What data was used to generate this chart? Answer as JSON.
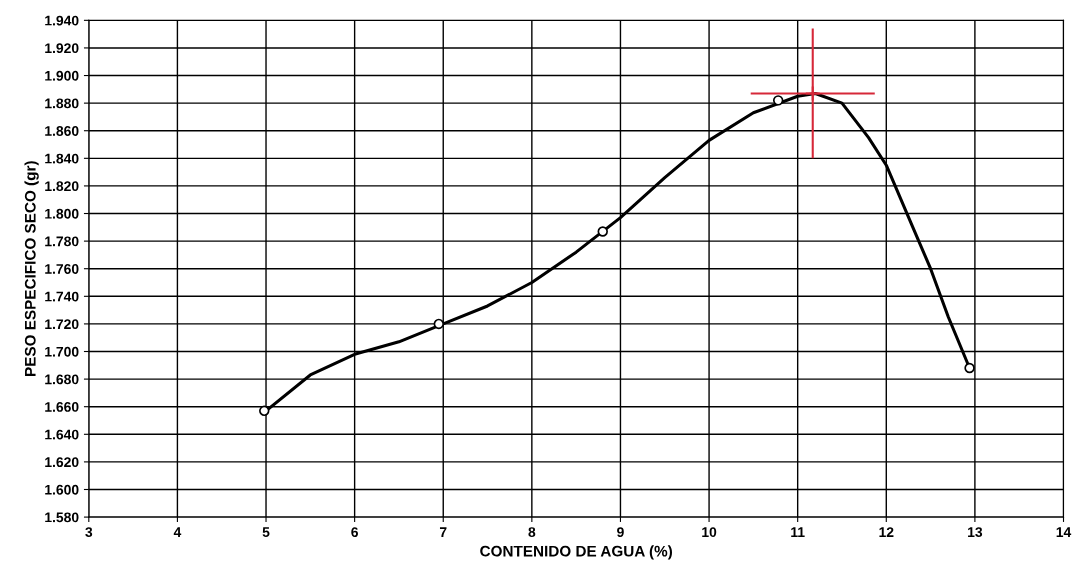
{
  "chart_data": {
    "type": "line",
    "xlabel": "CONTENIDO DE AGUA (%)",
    "ylabel": "PESO ESPECIFICO SECO (gr)",
    "xlim": [
      3,
      14
    ],
    "xticks": [
      3,
      4,
      5,
      6,
      7,
      8,
      9,
      10,
      11,
      12,
      13,
      14
    ],
    "ylim": [
      1.58,
      1.94
    ],
    "yticks": [
      {
        "value": 1.58,
        "label": "1.580"
      },
      {
        "value": 1.6,
        "label": "1.600"
      },
      {
        "value": 1.62,
        "label": "1.620"
      },
      {
        "value": 1.64,
        "label": "1.640"
      },
      {
        "value": 1.66,
        "label": "1.660"
      },
      {
        "value": 1.68,
        "label": "1.680"
      },
      {
        "value": 1.7,
        "label": "1.700"
      },
      {
        "value": 1.72,
        "label": "1.720"
      },
      {
        "value": 1.74,
        "label": "1.740"
      },
      {
        "value": 1.76,
        "label": "1.760"
      },
      {
        "value": 1.78,
        "label": "1.780"
      },
      {
        "value": 1.8,
        "label": "1.800"
      },
      {
        "value": 1.82,
        "label": "1.820"
      },
      {
        "value": 1.84,
        "label": "1.840"
      },
      {
        "value": 1.86,
        "label": "1.860"
      },
      {
        "value": 1.88,
        "label": "1.880"
      },
      {
        "value": 1.9,
        "label": "1.900"
      },
      {
        "value": 1.92,
        "label": "1.920"
      },
      {
        "value": 1.94,
        "label": "1.940"
      }
    ],
    "grid": true,
    "legend": false,
    "series": [
      {
        "color": "#000000",
        "marker": "none",
        "line_style": "solid",
        "x": [
          5.0,
          5.5,
          6.0,
          6.5,
          7.0,
          7.5,
          8.0,
          8.5,
          9.0,
          9.5,
          10.0,
          10.5,
          11.0,
          11.2,
          11.5,
          11.8,
          12.0,
          12.3,
          12.5,
          12.7,
          12.94
        ],
        "values": [
          1.657,
          1.683,
          1.698,
          1.707,
          1.72,
          1.733,
          1.75,
          1.772,
          1.797,
          1.826,
          1.853,
          1.873,
          1.885,
          1.887,
          1.88,
          1.855,
          1.835,
          1.79,
          1.76,
          1.725,
          1.688
        ]
      },
      {
        "type": "scatter",
        "color": "#000000",
        "marker": "circle",
        "x": [
          4.98,
          6.95,
          8.8,
          10.78,
          12.94
        ],
        "values": [
          1.657,
          1.72,
          1.787,
          1.882,
          1.688
        ]
      },
      {
        "type": "scatter",
        "color": "#d62839",
        "marker": "cross",
        "x": [
          11.17
        ],
        "values": [
          1.887
        ],
        "errors": [
          0.047
        ],
        "xerrors": [
          0.7
        ]
      }
    ]
  }
}
